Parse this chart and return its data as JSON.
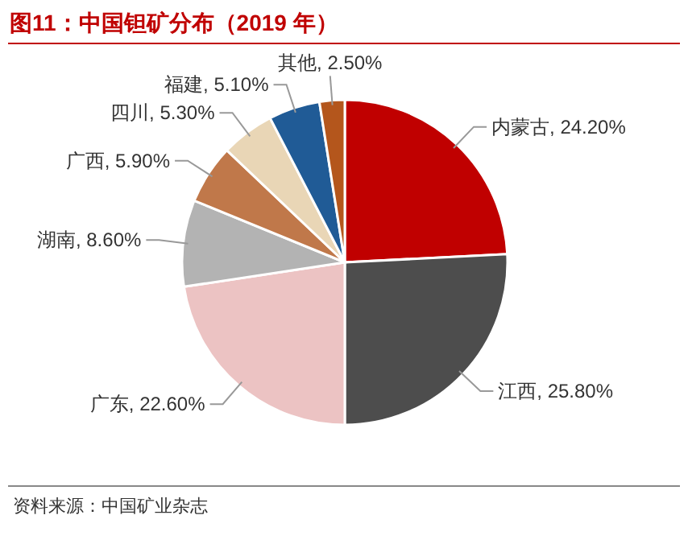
{
  "chart_data": {
    "type": "pie",
    "title": "图11：中国钽矿分布（2019 年）",
    "categories": [
      "内蒙古",
      "江西",
      "广东",
      "湖南",
      "广西",
      "四川",
      "福建",
      "其他"
    ],
    "values": [
      24.2,
      25.8,
      22.6,
      8.6,
      5.9,
      5.3,
      5.1,
      2.5
    ],
    "value_labels": [
      "24.20%",
      "25.80%",
      "22.60%",
      "8.60%",
      "5.90%",
      "5.30%",
      "5.10%",
      "2.50%"
    ],
    "colors": [
      "#c00000",
      "#4d4d4d",
      "#ecc3c3",
      "#b3b3b3",
      "#c0784a",
      "#e9d6b6",
      "#205b96",
      "#b4561c"
    ],
    "annotations": [
      "资料来源：中国矿业杂志"
    ]
  }
}
